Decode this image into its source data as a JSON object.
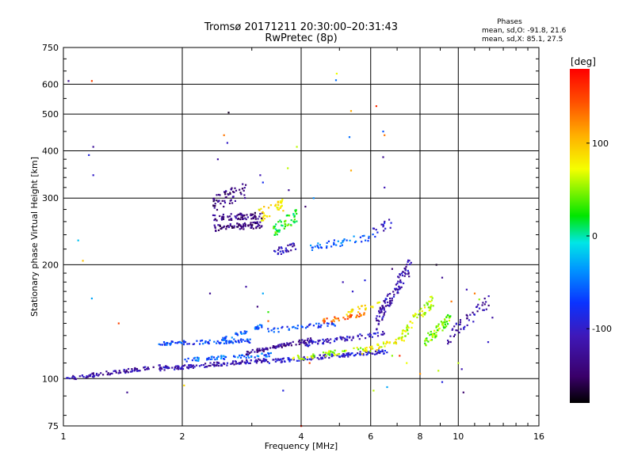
{
  "header": {
    "title": "Tromsø 20171211 20:30:00–20:31:43",
    "subtitle": "RwPretec (8p)",
    "stats_heading": "Phases",
    "stats_o": "mean, sd,O:  -91.8, 21.6",
    "stats_x": "mean, sd,X:  85.1, 27.5"
  },
  "chart_data": {
    "type": "scatter",
    "xlabel": "Frequency [MHz]",
    "ylabel": "Stationary phase Virtual Height [km]",
    "x_scale": "log",
    "y_scale": "log",
    "xlim": [
      1,
      16
    ],
    "ylim": [
      75,
      750
    ],
    "x_ticks": [
      1,
      2,
      4,
      6,
      8,
      10,
      16
    ],
    "x_tick_labels": [
      "1",
      "2",
      "4",
      "6",
      "8",
      "10",
      "16"
    ],
    "y_ticks": [
      75,
      100,
      200,
      300,
      400,
      500,
      600,
      750
    ],
    "y_tick_labels": [
      "75",
      "100",
      "200",
      "300",
      "400",
      "500",
      "600",
      "750"
    ],
    "grid": true,
    "colorbar": {
      "label": "[deg]",
      "range": [
        -180,
        180
      ],
      "ticks": [
        100,
        0,
        -100
      ],
      "tick_labels": [
        "100",
        "0",
        "-100"
      ]
    },
    "traces": [
      {
        "x_range": [
          1.0,
          1.85
        ],
        "y_start": 100,
        "y_end": 108,
        "phase": -118,
        "count": 95,
        "spread": 2.5
      },
      {
        "x_range": [
          1.75,
          3.3
        ],
        "y_start": 106,
        "y_end": 112,
        "phase": -112,
        "count": 140,
        "spread": 2.5
      },
      {
        "x_range": [
          3.3,
          6.6
        ],
        "y_start": 111,
        "y_end": 118,
        "phase": -98,
        "count": 130,
        "spread": 2.5
      },
      {
        "x_range": [
          2.0,
          3.4
        ],
        "y_start": 112,
        "y_end": 116,
        "phase": -55,
        "count": 70,
        "spread": 2.5
      },
      {
        "x_range": [
          3.8,
          5.8
        ],
        "y_start": 113,
        "y_end": 120,
        "phase": 55,
        "count": 45,
        "spread": 3
      },
      {
        "x_range": [
          5.6,
          7.4
        ],
        "y_start": 117,
        "y_end": 128,
        "phase": 75,
        "count": 45,
        "spread": 3.5
      },
      {
        "x_range": [
          1.75,
          3.0
        ],
        "y_start": 124,
        "y_end": 126,
        "phase": -70,
        "count": 90,
        "spread": 2.5
      },
      {
        "x_range": [
          2.5,
          3.2
        ],
        "y_start": 127,
        "y_end": 138,
        "phase": -58,
        "count": 40,
        "spread": 2.5
      },
      {
        "x_range": [
          2.9,
          4.3
        ],
        "y_start": 117,
        "y_end": 127,
        "phase": -128,
        "count": 90,
        "spread": 2.5
      },
      {
        "x_range": [
          4.0,
          6.6
        ],
        "y_start": 123,
        "y_end": 132,
        "phase": -105,
        "count": 80,
        "spread": 3
      },
      {
        "x_range": [
          3.3,
          4.9
        ],
        "y_start": 134,
        "y_end": 140,
        "phase": -72,
        "count": 45,
        "spread": 3
      },
      {
        "x_range": [
          4.5,
          5.8
        ],
        "y_start": 142,
        "y_end": 148,
        "phase": 135,
        "count": 35,
        "spread": 3
      },
      {
        "x_range": [
          5.2,
          6.4
        ],
        "y_start": 148,
        "y_end": 160,
        "phase": 82,
        "count": 25,
        "spread": 4
      },
      {
        "x_range": [
          6.2,
          7.6
        ],
        "y_start": 140,
        "y_end": 200,
        "phase": -115,
        "count": 110,
        "spread": 10
      },
      {
        "x_range": [
          7.2,
          8.6
        ],
        "y_start": 130,
        "y_end": 160,
        "phase": 65,
        "count": 60,
        "spread": 9
      },
      {
        "x_range": [
          8.2,
          9.6
        ],
        "y_start": 125,
        "y_end": 145,
        "phase": 45,
        "count": 60,
        "spread": 7
      },
      {
        "x_range": [
          9.4,
          12.0
        ],
        "y_start": 128,
        "y_end": 160,
        "phase": -120,
        "count": 50,
        "spread": 9
      },
      {
        "x_range": [
          2.4,
          3.2
        ],
        "y_start": 250,
        "y_end": 255,
        "phase": -140,
        "count": 75,
        "spread": 4
      },
      {
        "x_range": [
          2.4,
          3.2
        ],
        "y_start": 266,
        "y_end": 270,
        "phase": -135,
        "count": 75,
        "spread": 4
      },
      {
        "x_range": [
          2.4,
          2.9
        ],
        "y_start": 290,
        "y_end": 315,
        "phase": -138,
        "count": 60,
        "spread": 10
      },
      {
        "x_range": [
          3.1,
          3.6
        ],
        "y_start": 270,
        "y_end": 290,
        "phase": 80,
        "count": 40,
        "spread": 10
      },
      {
        "x_range": [
          3.4,
          3.9
        ],
        "y_start": 245,
        "y_end": 270,
        "phase": 25,
        "count": 55,
        "spread": 8
      },
      {
        "x_range": [
          3.4,
          3.9
        ],
        "y_start": 215,
        "y_end": 225,
        "phase": -110,
        "count": 30,
        "spread": 5
      },
      {
        "x_range": [
          4.2,
          6.2
        ],
        "y_start": 222,
        "y_end": 238,
        "phase": -55,
        "count": 45,
        "spread": 5
      },
      {
        "x_range": [
          6.0,
          6.8
        ],
        "y_start": 240,
        "y_end": 260,
        "phase": -100,
        "count": 15,
        "spread": 8
      }
    ],
    "scattered_points": [
      {
        "x": 1.03,
        "y": 612,
        "phase": -130
      },
      {
        "x": 1.18,
        "y": 612,
        "phase": 150
      },
      {
        "x": 1.19,
        "y": 410,
        "phase": -125
      },
      {
        "x": 1.19,
        "y": 345,
        "phase": -100
      },
      {
        "x": 1.16,
        "y": 390,
        "phase": -90
      },
      {
        "x": 1.09,
        "y": 232,
        "phase": -20
      },
      {
        "x": 1.12,
        "y": 205,
        "phase": 100
      },
      {
        "x": 1.18,
        "y": 163,
        "phase": -30
      },
      {
        "x": 1.38,
        "y": 140,
        "phase": 150
      },
      {
        "x": 2.62,
        "y": 505,
        "phase": -170
      },
      {
        "x": 2.55,
        "y": 440,
        "phase": 130
      },
      {
        "x": 2.6,
        "y": 420,
        "phase": -100
      },
      {
        "x": 2.46,
        "y": 380,
        "phase": -120
      },
      {
        "x": 3.15,
        "y": 345,
        "phase": -110
      },
      {
        "x": 3.7,
        "y": 360,
        "phase": 60
      },
      {
        "x": 3.72,
        "y": 315,
        "phase": -130
      },
      {
        "x": 3.2,
        "y": 330,
        "phase": -80
      },
      {
        "x": 3.9,
        "y": 410,
        "phase": 60
      },
      {
        "x": 4.92,
        "y": 640,
        "phase": 70
      },
      {
        "x": 4.9,
        "y": 615,
        "phase": -50
      },
      {
        "x": 5.35,
        "y": 510,
        "phase": 110
      },
      {
        "x": 5.3,
        "y": 435,
        "phase": -50
      },
      {
        "x": 5.35,
        "y": 355,
        "phase": 110
      },
      {
        "x": 6.2,
        "y": 525,
        "phase": 160
      },
      {
        "x": 6.45,
        "y": 450,
        "phase": -60
      },
      {
        "x": 6.5,
        "y": 440,
        "phase": 130
      },
      {
        "x": 6.45,
        "y": 385,
        "phase": -130
      },
      {
        "x": 6.5,
        "y": 320,
        "phase": -110
      },
      {
        "x": 4.3,
        "y": 300,
        "phase": -40
      },
      {
        "x": 4.1,
        "y": 285,
        "phase": -150
      },
      {
        "x": 2.35,
        "y": 168,
        "phase": -130
      },
      {
        "x": 2.9,
        "y": 175,
        "phase": -120
      },
      {
        "x": 3.2,
        "y": 168,
        "phase": -30
      },
      {
        "x": 3.3,
        "y": 150,
        "phase": 30
      },
      {
        "x": 3.1,
        "y": 155,
        "phase": -140
      },
      {
        "x": 3.3,
        "y": 142,
        "phase": 140
      },
      {
        "x": 5.1,
        "y": 180,
        "phase": -110
      },
      {
        "x": 5.4,
        "y": 170,
        "phase": -100
      },
      {
        "x": 5.8,
        "y": 182,
        "phase": -90
      },
      {
        "x": 6.8,
        "y": 195,
        "phase": -150
      },
      {
        "x": 8.8,
        "y": 200,
        "phase": -170
      },
      {
        "x": 9.1,
        "y": 185,
        "phase": -130
      },
      {
        "x": 10.5,
        "y": 172,
        "phase": -110
      },
      {
        "x": 11.0,
        "y": 168,
        "phase": 130
      },
      {
        "x": 11.3,
        "y": 162,
        "phase": 50
      },
      {
        "x": 9.6,
        "y": 160,
        "phase": 130
      },
      {
        "x": 8.9,
        "y": 105,
        "phase": 60
      },
      {
        "x": 9.1,
        "y": 98,
        "phase": -90
      },
      {
        "x": 10.0,
        "y": 110,
        "phase": 60
      },
      {
        "x": 10.2,
        "y": 106,
        "phase": -110
      },
      {
        "x": 10.3,
        "y": 92,
        "phase": -150
      },
      {
        "x": 8.0,
        "y": 103,
        "phase": 120
      },
      {
        "x": 7.4,
        "y": 110,
        "phase": 70
      },
      {
        "x": 6.6,
        "y": 95,
        "phase": -30
      },
      {
        "x": 6.8,
        "y": 115,
        "phase": 50
      },
      {
        "x": 3.6,
        "y": 93,
        "phase": -90
      },
      {
        "x": 1.45,
        "y": 92,
        "phase": -130
      },
      {
        "x": 4.0,
        "y": 75,
        "phase": 170
      },
      {
        "x": 4.2,
        "y": 110,
        "phase": 150
      },
      {
        "x": 7.1,
        "y": 115,
        "phase": 160
      },
      {
        "x": 11.9,
        "y": 125,
        "phase": -100
      },
      {
        "x": 12.2,
        "y": 145,
        "phase": -120
      },
      {
        "x": 2.02,
        "y": 96,
        "phase": 90
      },
      {
        "x": 6.1,
        "y": 93,
        "phase": 60
      }
    ]
  }
}
